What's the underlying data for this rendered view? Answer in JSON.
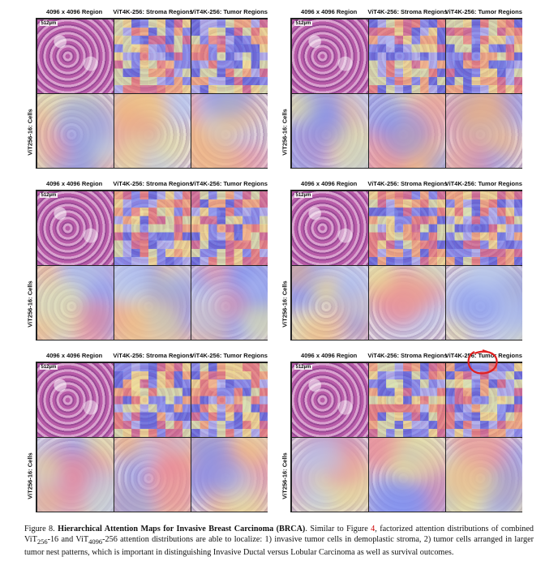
{
  "headers": {
    "region": "4096 x 4096 Region",
    "stroma": "ViT4K-256: Stroma Regions",
    "tumor": "ViT4K-256: Tumor Regions"
  },
  "scale_label": "512µm",
  "side_label": "ViT256-16: Cells",
  "panels": [
    {
      "id": "panel-1"
    },
    {
      "id": "panel-2"
    },
    {
      "id": "panel-3"
    },
    {
      "id": "panel-4"
    },
    {
      "id": "panel-5"
    },
    {
      "id": "panel-6"
    }
  ],
  "caption": {
    "figure": "Figure 8.",
    "title": "Hierarchical Attention Maps for Invasive Breast Carcinoma (BRCA)",
    "after_title": ". Similar to Figure ",
    "ref": "4",
    "text1": ", factorized attention distributions of combined ViT",
    "sub1": "256",
    "text2": "-16 and ViT",
    "sub2": "4096",
    "text3": "-256 attention distributions are able to localize: 1) invasive tumor cells in demoplastic stroma, 2) tumor cells arranged in larger tumor nest patterns, which is important in distinguishing Invasive Ductal versus Lobular Carcinoma as well as survival outcomes."
  },
  "colors": {
    "red_annotation": "#e02020"
  }
}
